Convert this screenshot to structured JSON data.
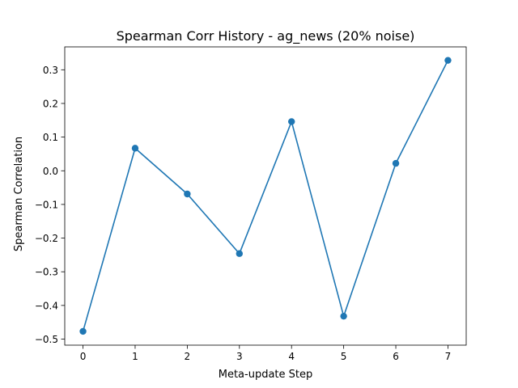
{
  "chart_data": {
    "type": "line",
    "title": "Spearman Corr History - ag_news (20% noise)",
    "xlabel": "Meta-update Step",
    "ylabel": "Spearman Correlation",
    "x": [
      0,
      1,
      2,
      3,
      4,
      5,
      6,
      7
    ],
    "y": [
      -0.477,
      0.067,
      -0.069,
      -0.246,
      0.146,
      -0.432,
      0.022,
      0.328
    ],
    "xlim": [
      -0.35,
      7.35
    ],
    "ylim": [
      -0.518,
      0.368
    ],
    "xticks": [
      0,
      1,
      2,
      3,
      4,
      5,
      6,
      7
    ],
    "xtick_labels": [
      "0",
      "1",
      "2",
      "3",
      "4",
      "5",
      "6",
      "7"
    ],
    "yticks": [
      -0.5,
      -0.4,
      -0.3,
      -0.2,
      -0.1,
      0.0,
      0.1,
      0.2,
      0.3
    ],
    "ytick_labels": [
      "−0.5",
      "−0.4",
      "−0.3",
      "−0.2",
      "−0.1",
      "0.0",
      "0.1",
      "0.2",
      "0.3"
    ],
    "grid": false,
    "legend": null,
    "color": "#1f77b4",
    "marker": "circle"
  }
}
